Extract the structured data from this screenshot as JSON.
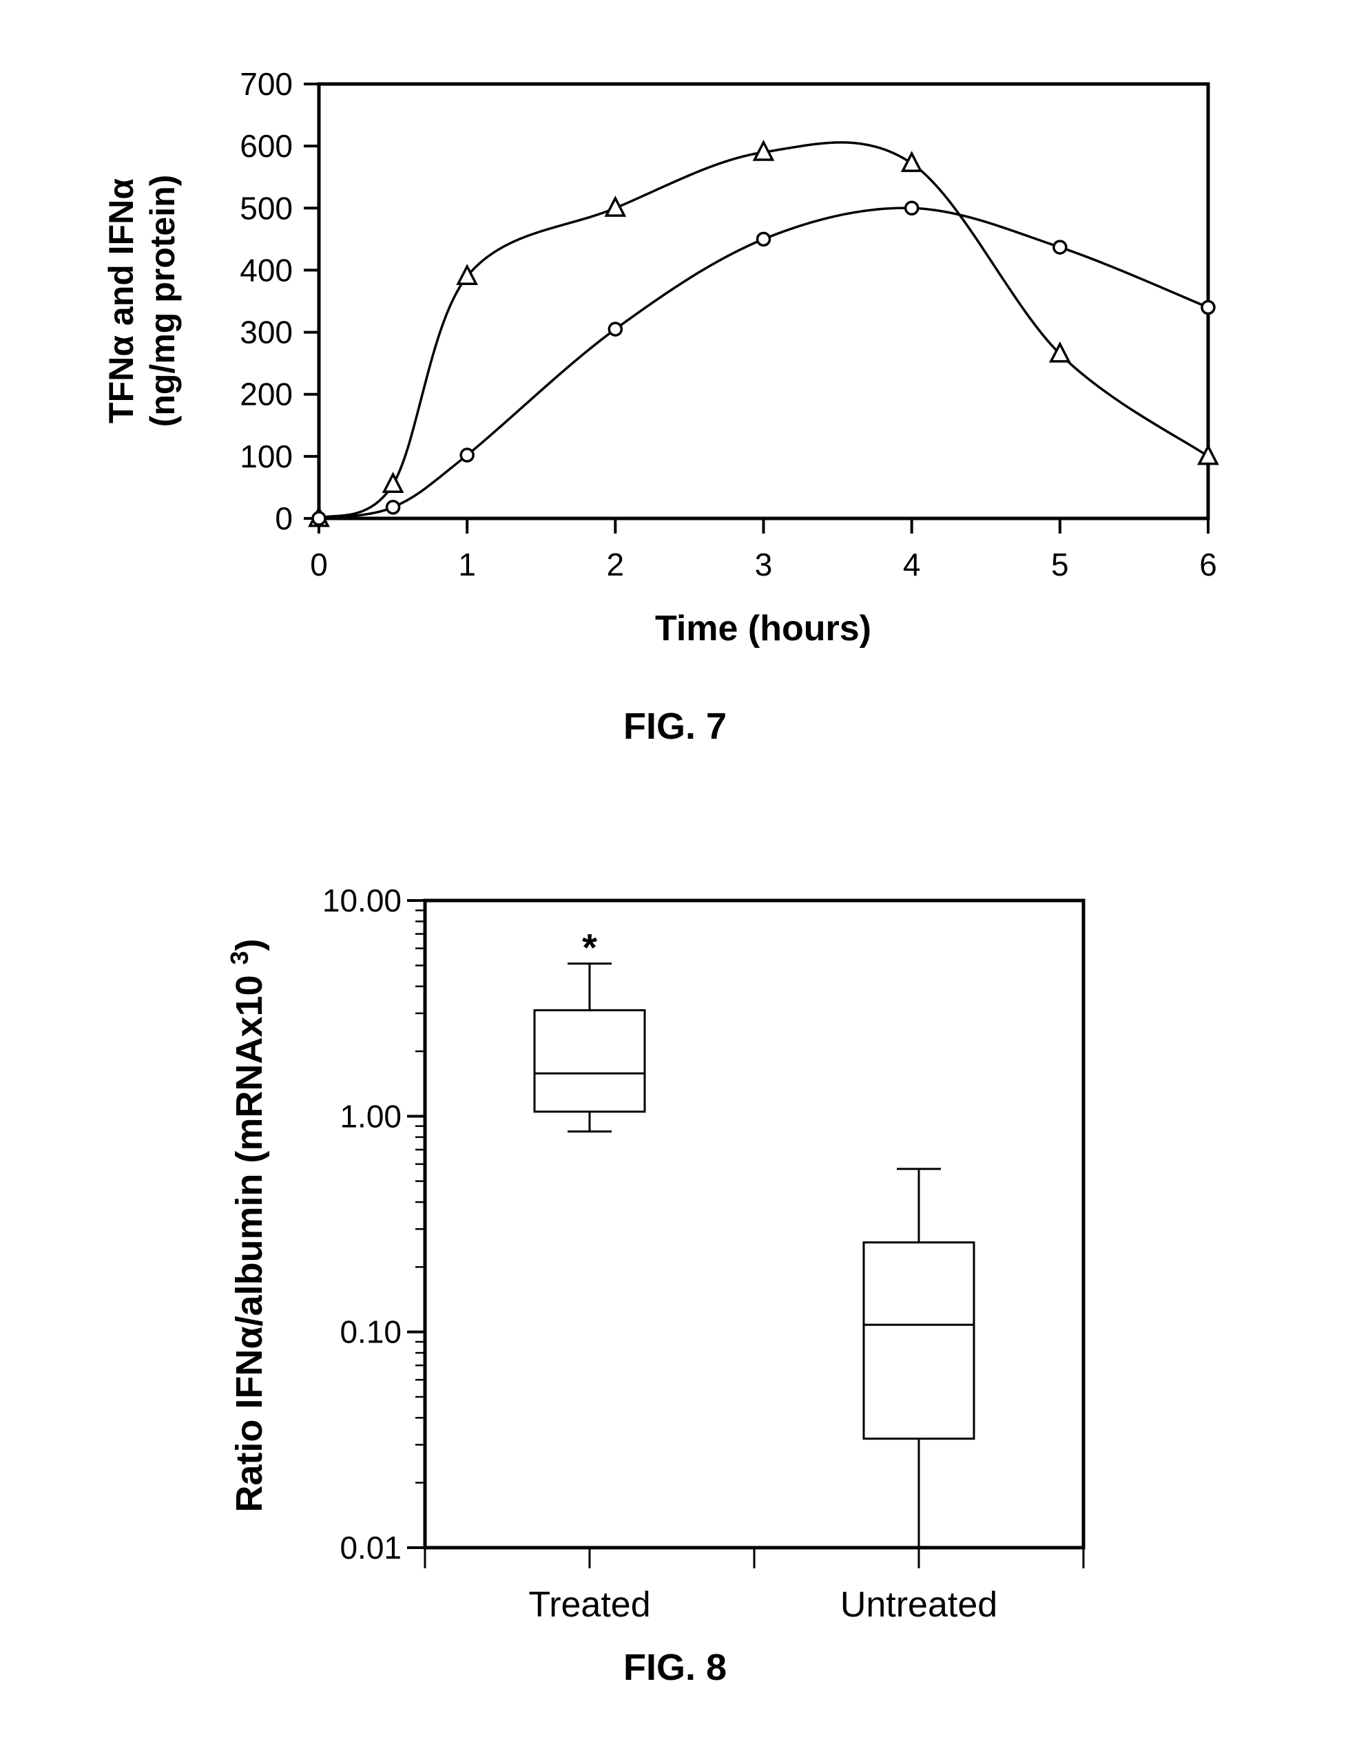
{
  "figures": {
    "fig7_caption": "FIG. 7",
    "fig8_caption": "FIG. 8"
  },
  "chart_data": [
    {
      "type": "line",
      "title": "",
      "xlabel": "Time (hours)",
      "ylabel_line1": "TFNα and IFNα",
      "ylabel_line2": "(ng/mg protein)",
      "xlim": [
        0,
        6
      ],
      "ylim": [
        0,
        700
      ],
      "x_ticks": [
        0,
        1,
        2,
        3,
        4,
        5,
        6
      ],
      "y_ticks": [
        0,
        100,
        200,
        300,
        400,
        500,
        600,
        700
      ],
      "grid": false,
      "series": [
        {
          "marker": "triangle",
          "x": [
            0,
            0.5,
            1,
            2,
            3,
            4,
            5,
            6
          ],
          "y": [
            0,
            55,
            390,
            500,
            590,
            572,
            265,
            100
          ]
        },
        {
          "marker": "circle",
          "x": [
            0,
            0.5,
            1,
            2,
            3,
            4,
            5,
            6
          ],
          "y": [
            0,
            18,
            102,
            305,
            450,
            500,
            437,
            340
          ]
        }
      ]
    },
    {
      "type": "box",
      "title": "",
      "xlabel": "",
      "ylabel": "Ratio IFNα/albumin (mRNAx10³)",
      "yscale": "log",
      "ylim": [
        0.01,
        10
      ],
      "y_ticks": [
        "0.01",
        "0.10",
        "1.00",
        "10.00"
      ],
      "categories": [
        "Treated",
        "Untreated"
      ],
      "boxes": [
        {
          "name": "Treated",
          "whisker_low": 0.85,
          "q1": 1.05,
          "median": 1.58,
          "q3": 3.1,
          "whisker_high": 5.1,
          "annotation": "*"
        },
        {
          "name": "Untreated",
          "whisker_low": 0.01,
          "q1": 0.032,
          "median": 0.108,
          "q3": 0.26,
          "whisker_high": 0.57,
          "annotation": ""
        }
      ]
    }
  ]
}
